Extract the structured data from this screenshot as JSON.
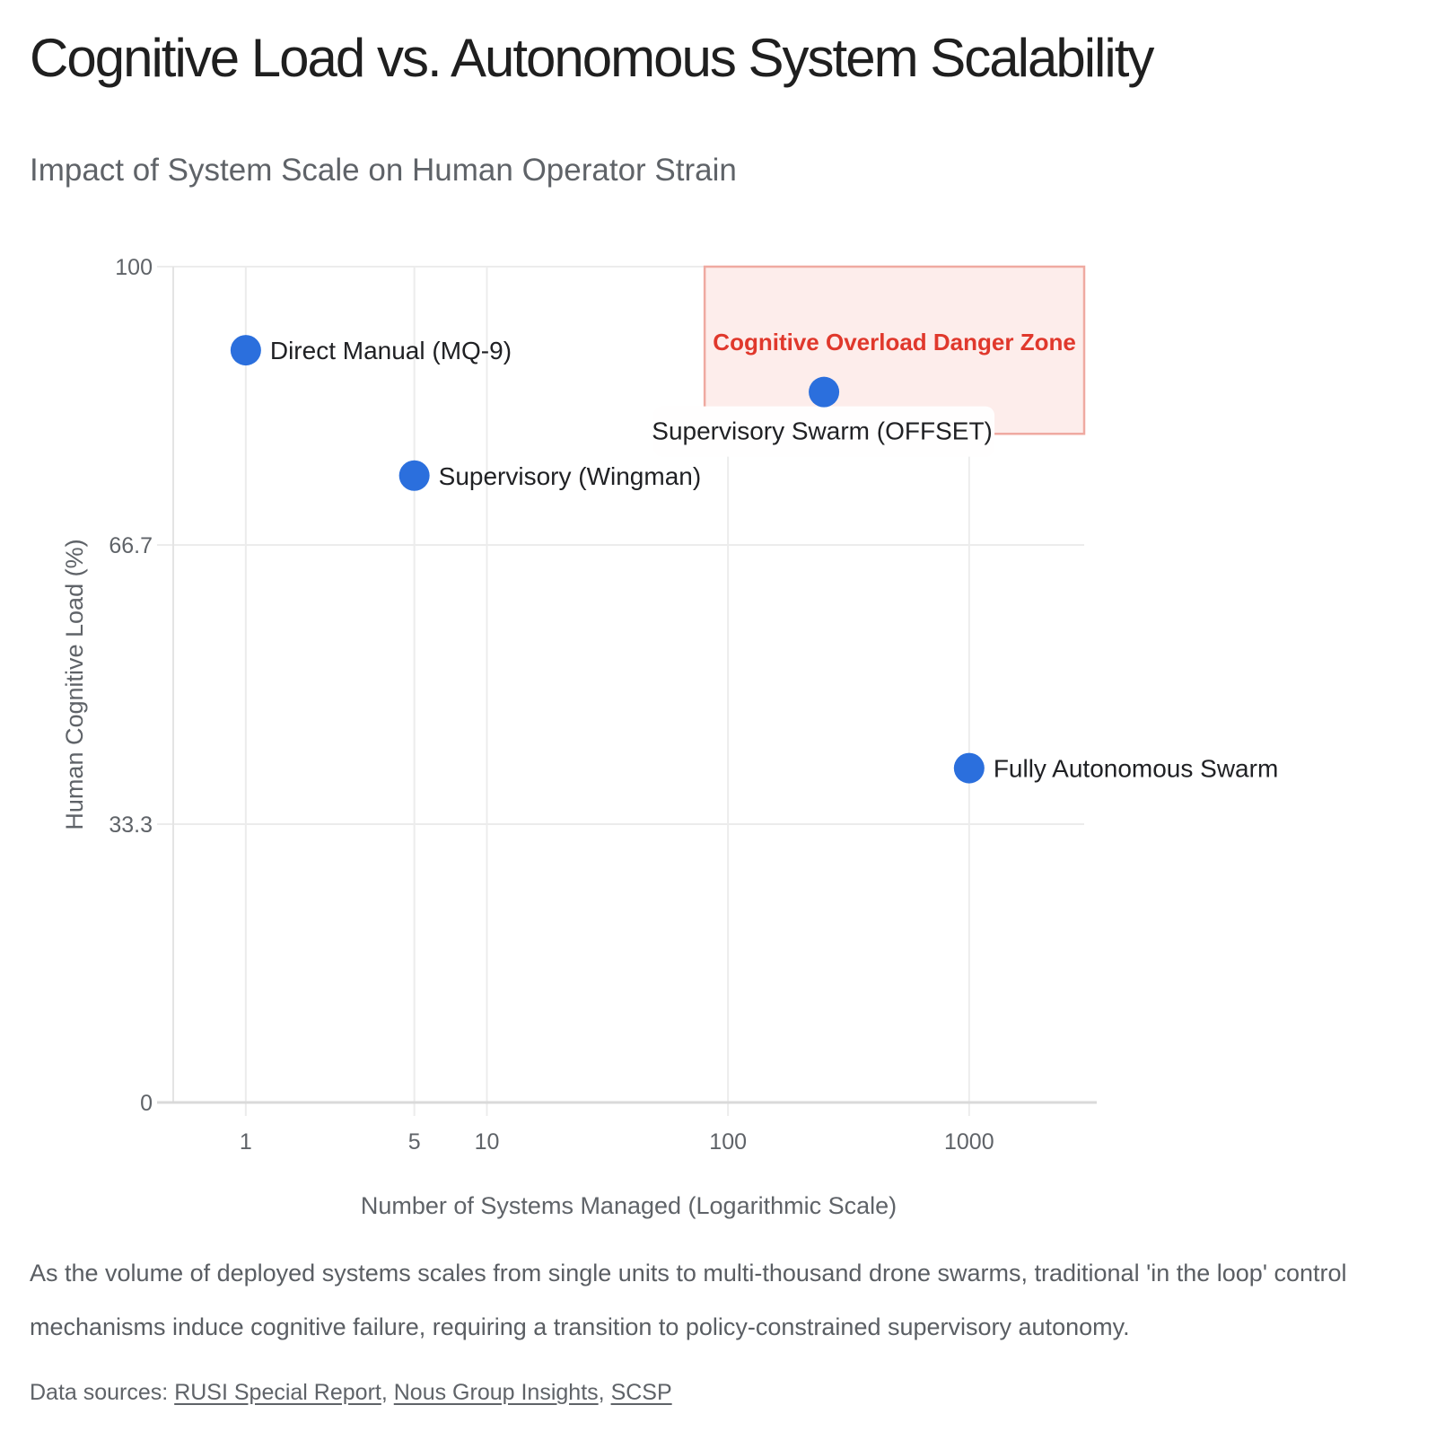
{
  "chart_data": {
    "type": "scatter",
    "title": "Cognitive Load vs. Autonomous System Scalability",
    "subtitle": "Impact of System Scale on Human Operator Strain",
    "xlabel": "Number of Systems Managed (Logarithmic Scale)",
    "ylabel": "Human Cognitive Load (%)",
    "x_scale": "log",
    "x_domain": [
      0.5,
      3000
    ],
    "y_domain": [
      0,
      100
    ],
    "x_ticks": {
      "values": [
        1,
        5,
        10,
        100,
        1000
      ],
      "labels": [
        "1",
        "5",
        "10",
        "100",
        "1000"
      ]
    },
    "y_ticks": {
      "values": [
        0,
        33.3,
        66.7,
        100
      ],
      "labels": [
        "0",
        "33.3",
        "66.7",
        "100"
      ]
    },
    "grid": true,
    "point_color": "#2b6fdd",
    "point_radius_px": 17,
    "points": [
      {
        "label": "Direct Manual (MQ-9)",
        "x": 1,
        "y": 90,
        "label_position": "right"
      },
      {
        "label": "Supervisory (Wingman)",
        "x": 5,
        "y": 75,
        "label_position": "right"
      },
      {
        "label": "Supervisory Swarm (OFFSET)",
        "x": 250,
        "y": 85,
        "label_position": "below",
        "label_background": true
      },
      {
        "label": "Fully Autonomous Swarm",
        "x": 1000,
        "y": 40,
        "label_position": "right"
      }
    ],
    "danger_zone": {
      "label": "Cognitive Overload Danger Zone",
      "x_range": [
        80,
        3000
      ],
      "y_range": [
        80,
        100
      ],
      "fill": "#fdedeb",
      "border_color": "#efaaa1",
      "label_color": "#e0382c"
    }
  },
  "caption": {
    "text": "As the volume of deployed systems scales from single units to multi-thousand drone swarms, traditional 'in the loop' control mechanisms induce cognitive failure, requiring a transition to policy-constrained supervisory autonomy."
  },
  "sources": {
    "prefix": "Data sources: ",
    "separator": ", ",
    "links": [
      "RUSI Special Report",
      "Nous Group Insights",
      "SCSP"
    ]
  }
}
